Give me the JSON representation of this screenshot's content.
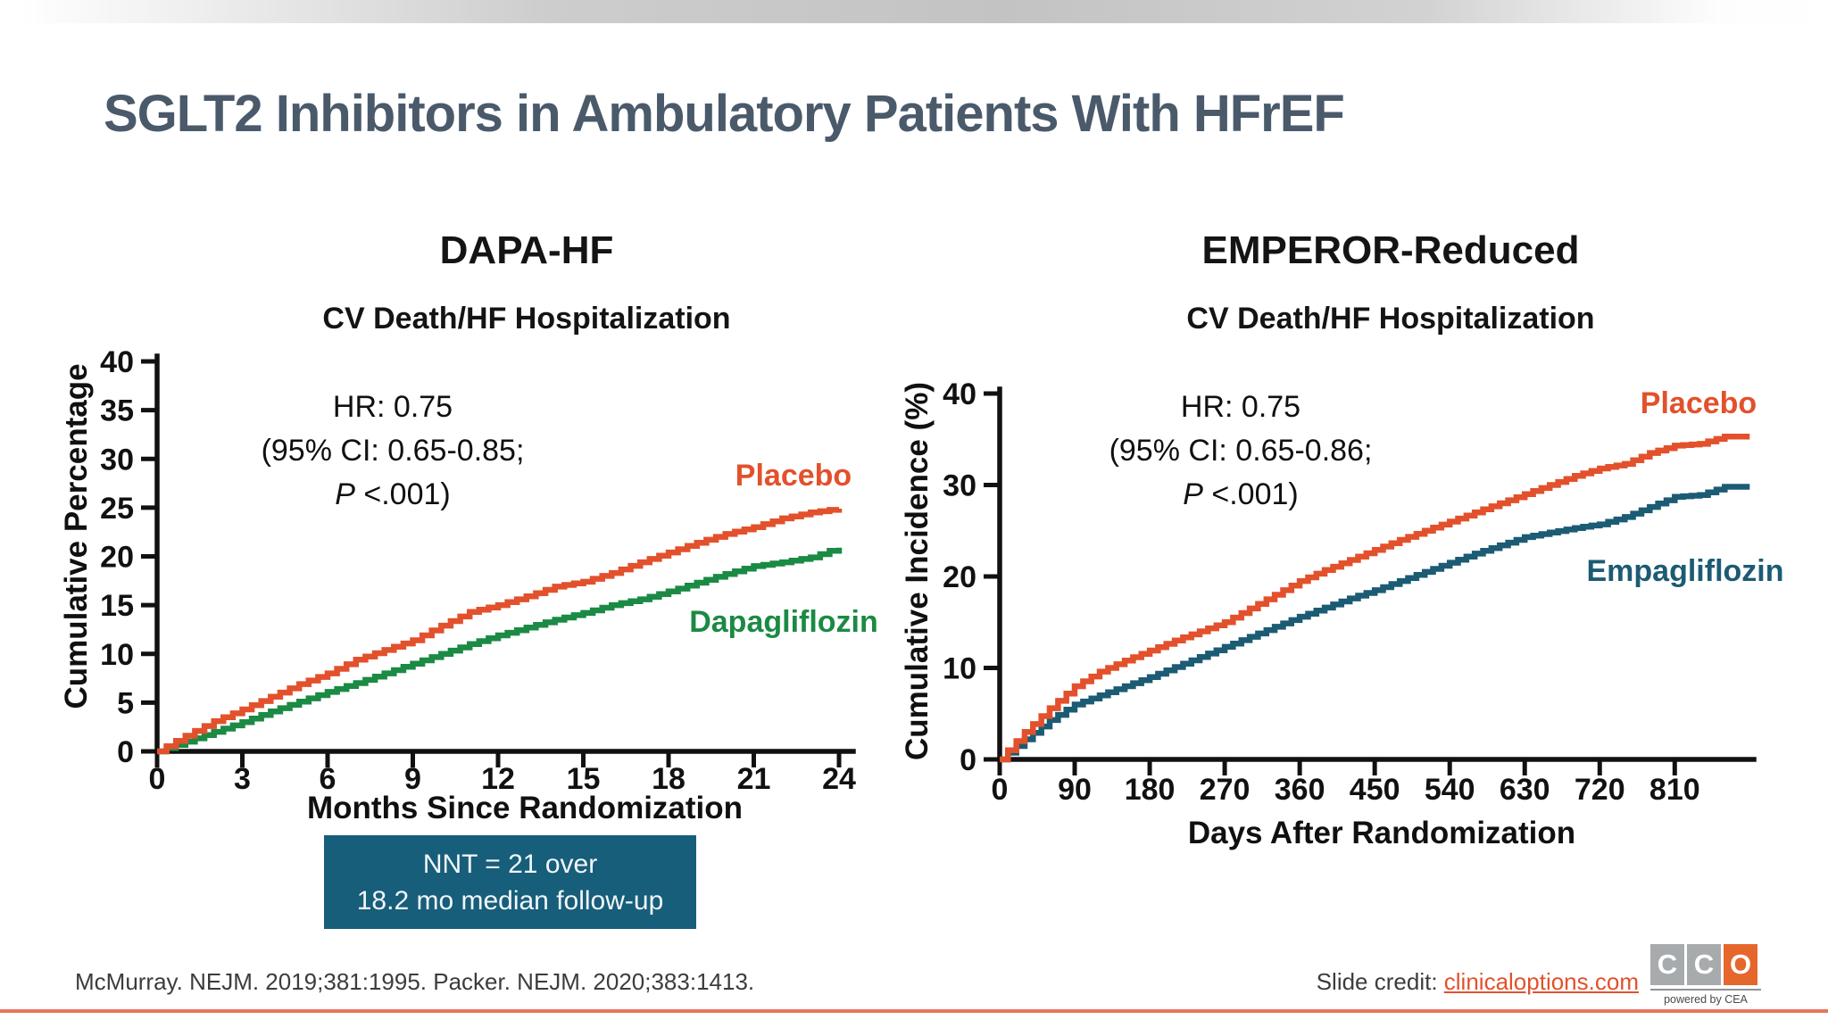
{
  "slide": {
    "title": "SGLT2 Inhibitors in Ambulatory Patients With HFrEF",
    "footer_citation": "McMurray. NEJM. 2019;381:1995. Packer. NEJM. 2020;383:1413.",
    "credit_label": "Slide credit: ",
    "credit_link": "clinicaloptions.com",
    "nnt": {
      "line1": "NNT = 21 over",
      "line2": "18.2 mo median follow-up"
    },
    "logo": {
      "letters": [
        "C",
        "C",
        "O"
      ],
      "tagline": "powered by CEA"
    },
    "colors": {
      "accent_orange": "#E2512C",
      "green": "#1B8A44",
      "teal": "#1C5B74",
      "nnt_background": "#175E7A",
      "title_text": "#4A5A6B",
      "bottom_rule": "#E8755B"
    }
  },
  "chart_data": [
    {
      "type": "line",
      "km_step": true,
      "title": "DAPA-HF",
      "subtitle": "CV Death/HF Hospitalization",
      "annotation": {
        "line1": "HR: 0.75",
        "line2": "(95% CI: 0.65-0.85;",
        "line3_italic": "P",
        "line3_rest": " <.001)"
      },
      "xlabel": "Months Since Randomization",
      "ylabel": "Cumulative Percentage",
      "xlim": [
        0,
        24
      ],
      "ylim": [
        0,
        40
      ],
      "xticks": [
        0,
        3,
        6,
        9,
        12,
        15,
        18,
        21,
        24
      ],
      "yticks": [
        0,
        5,
        10,
        15,
        20,
        25,
        30,
        35,
        40
      ],
      "grid": false,
      "legend_position": "on-curve",
      "series": [
        {
          "name": "Placebo",
          "color": "#E2512C",
          "x": [
            0,
            1,
            2,
            3,
            4,
            5,
            6,
            7,
            8,
            9,
            10,
            11,
            12,
            13,
            14,
            15,
            16,
            17,
            18,
            19,
            20,
            21,
            22,
            23,
            24
          ],
          "y": [
            0,
            1.6,
            3.1,
            4.3,
            5.6,
            6.9,
            8.0,
            9.4,
            10.4,
            11.4,
            12.9,
            14.3,
            15.0,
            15.9,
            16.9,
            17.4,
            18.3,
            19.4,
            20.4,
            21.4,
            22.3,
            23.0,
            23.9,
            24.5,
            24.9
          ]
        },
        {
          "name": "Dapagliflozin",
          "color": "#1B8A44",
          "x": [
            0,
            1,
            2,
            3,
            4,
            5,
            6,
            7,
            8,
            9,
            10,
            11,
            12,
            13,
            14,
            15,
            16,
            17,
            18,
            19,
            20,
            21,
            22,
            23,
            24
          ],
          "y": [
            0,
            1.0,
            2.0,
            3.0,
            4.1,
            5.1,
            6.1,
            7.0,
            8.0,
            9.0,
            10.0,
            11.0,
            11.9,
            12.7,
            13.5,
            14.2,
            15.0,
            15.6,
            16.4,
            17.3,
            18.2,
            19.0,
            19.4,
            19.9,
            20.9
          ]
        }
      ]
    },
    {
      "type": "line",
      "km_step": true,
      "title": "EMPEROR-Reduced",
      "subtitle": "CV Death/HF Hospitalization",
      "annotation": {
        "line1": "HR: 0.75",
        "line2": "(95% CI: 0.65-0.86;",
        "line3_italic": "P",
        "line3_rest": " <.001)"
      },
      "xlabel": "Days After Randomization",
      "ylabel": "Cumulative Incidence (%)",
      "xlim": [
        0,
        905
      ],
      "ylim": [
        0,
        40
      ],
      "xticks": [
        0,
        90,
        180,
        270,
        360,
        450,
        540,
        630,
        720,
        810
      ],
      "yticks": [
        0,
        10,
        20,
        30,
        40
      ],
      "grid": false,
      "legend_position": "on-curve",
      "series": [
        {
          "name": "Placebo",
          "color": "#E2512C",
          "x": [
            0,
            30,
            60,
            90,
            120,
            150,
            180,
            210,
            240,
            270,
            300,
            330,
            360,
            390,
            420,
            450,
            480,
            510,
            540,
            570,
            600,
            630,
            660,
            690,
            720,
            750,
            780,
            810,
            840,
            870,
            900
          ],
          "y": [
            0,
            3.0,
            5.6,
            8.0,
            9.6,
            10.8,
            11.9,
            13.0,
            14.0,
            15.0,
            16.5,
            18.0,
            19.5,
            20.7,
            21.8,
            22.9,
            24.0,
            25.0,
            26.0,
            27.0,
            28.0,
            29.0,
            30.0,
            31.0,
            31.8,
            32.3,
            33.5,
            34.3,
            34.5,
            35.3,
            35.3
          ]
        },
        {
          "name": "Empagliflozin",
          "color": "#1C5B74",
          "x": [
            0,
            30,
            60,
            90,
            120,
            150,
            180,
            210,
            240,
            270,
            300,
            330,
            360,
            390,
            420,
            450,
            480,
            510,
            540,
            570,
            600,
            630,
            660,
            690,
            720,
            750,
            780,
            810,
            840,
            870,
            900
          ],
          "y": [
            0,
            2.2,
            4.3,
            6.0,
            7.0,
            8.0,
            9.0,
            10.1,
            11.2,
            12.3,
            13.4,
            14.5,
            15.6,
            16.6,
            17.6,
            18.5,
            19.5,
            20.5,
            21.5,
            22.5,
            23.4,
            24.3,
            24.8,
            25.3,
            25.7,
            26.5,
            27.6,
            28.7,
            28.9,
            29.8,
            29.8
          ]
        }
      ]
    }
  ]
}
